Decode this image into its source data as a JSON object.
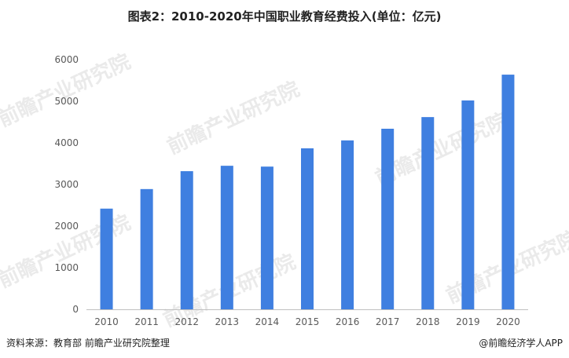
{
  "chart_data": {
    "type": "bar",
    "title": "图表2：2010-2020年中国职业教育经费投入(单位：亿元)",
    "xlabel": "",
    "ylabel": "",
    "categories": [
      "2010",
      "2011",
      "2012",
      "2013",
      "2014",
      "2015",
      "2016",
      "2017",
      "2018",
      "2019",
      "2020"
    ],
    "values": [
      2420,
      2890,
      3320,
      3450,
      3430,
      3870,
      4060,
      4340,
      4620,
      5020,
      5640
    ],
    "ylim": [
      0,
      6000
    ],
    "yticks": [
      0,
      1000,
      2000,
      3000,
      4000,
      5000,
      6000
    ],
    "grid": false,
    "bar_color": "#3f7fe0"
  },
  "footer": {
    "source": "资料来源：教育部 前瞻产业研究院整理",
    "credit": "@前瞻经济学人APP"
  },
  "watermark": {
    "text": "前瞻产业研究院"
  }
}
